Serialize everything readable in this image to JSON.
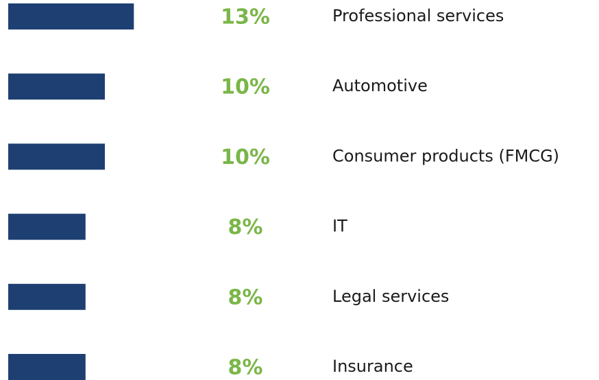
{
  "chart_data": {
    "type": "bar",
    "categories": [
      "Professional services",
      "Automotive",
      "Consumer products (FMCG)",
      "IT",
      "Legal services",
      "Insurance"
    ],
    "values": [
      13,
      10,
      10,
      8,
      8,
      8
    ],
    "value_labels": [
      "13%",
      "10%",
      "10%",
      "8%",
      "8%",
      "8%"
    ],
    "color": "#1d3f72",
    "value_label_color": "#7ab648"
  }
}
